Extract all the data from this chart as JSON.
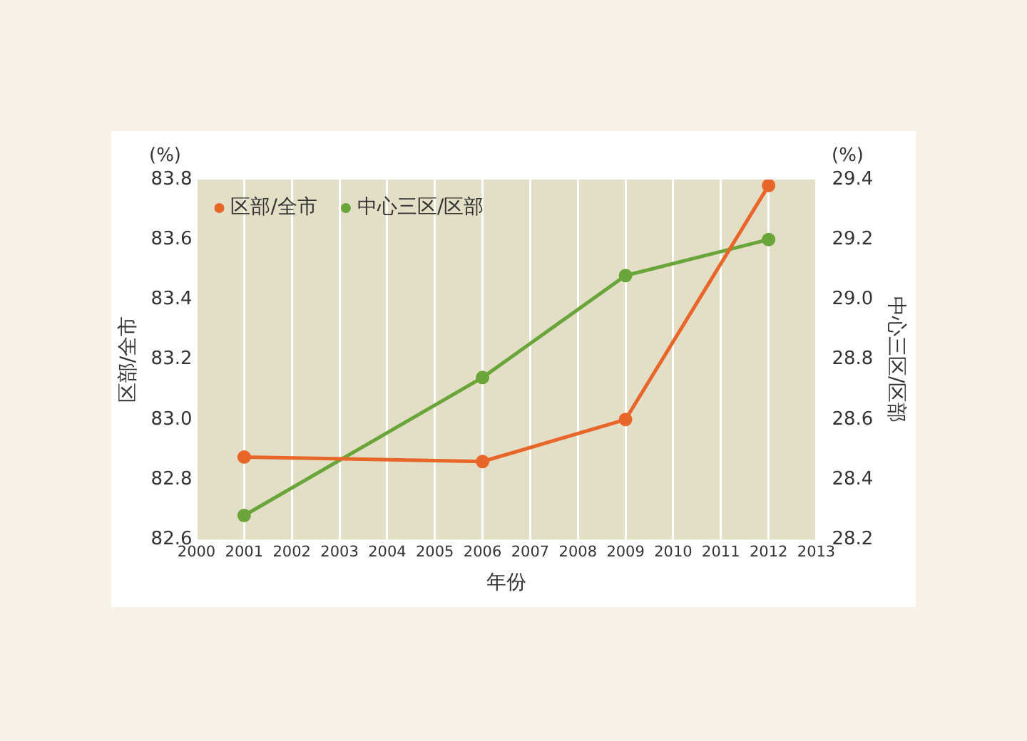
{
  "chart_data": {
    "type": "line",
    "xlabel": "年份",
    "ylabel": "区部/全市",
    "y2label": "中心三区/区部",
    "annotations": [
      "(%)",
      "(%)"
    ],
    "x": [
      2001,
      2006,
      2009,
      2012
    ],
    "series": [
      {
        "name": "区部/全市",
        "color": "#e8662a",
        "values": [
          82.875,
          82.86,
          83.0,
          83.78
        ]
      },
      {
        "name": "中心三区/区部",
        "color": "#6aa53a",
        "values": [
          28.28,
          28.74,
          29.08,
          29.2
        ],
        "axis": "y2"
      }
    ],
    "xlim": [
      2000,
      2013
    ],
    "xticks": [
      2000,
      2001,
      2002,
      2003,
      2004,
      2005,
      2006,
      2007,
      2008,
      2009,
      2010,
      2011,
      2012,
      2013
    ],
    "ylim": [
      82.6,
      83.8
    ],
    "yticks": [
      82.6,
      82.8,
      {
        "value": 83,
        "label": "83.0"
      },
      83.2,
      83.4,
      83.6,
      83.8
    ],
    "y2lim": [
      28.2,
      29.4
    ],
    "y2ticks": [
      28.2,
      28.4,
      28.6,
      28.8,
      {
        "value": 29,
        "label": "29.0"
      },
      29.2,
      29.4
    ],
    "grid": "x",
    "legend": "top left",
    "marker": "circle",
    "line_style": "solid"
  }
}
